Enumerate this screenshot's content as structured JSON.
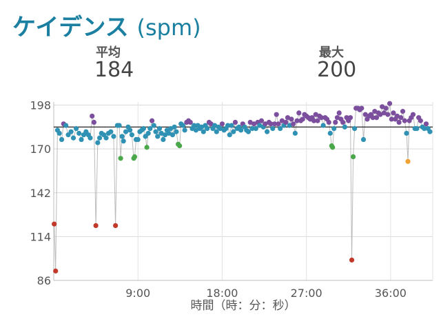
{
  "header": {
    "title": "ケイデンス",
    "unit": "(spm)"
  },
  "stats": {
    "avg_label": "平均",
    "avg_value": "184",
    "max_label": "最大",
    "max_value": "200"
  },
  "chart_data": {
    "type": "scatter",
    "title": "",
    "xlabel": "時間（時：分：秒）",
    "ylabel": "",
    "x_unit": "minutes",
    "xlim": [
      0,
      40.5
    ],
    "ylim": [
      86,
      198
    ],
    "y_ticks": [
      "198",
      "170",
      "142",
      "114",
      "86"
    ],
    "x_ticks": [
      "9:00",
      "18:00",
      "27:00",
      "36:00"
    ],
    "x_tick_values": [
      9,
      18,
      27,
      36
    ],
    "grid": true,
    "average_line": 184,
    "colors": {
      "purple": "#7b4f9d",
      "blue": "#2f91b3",
      "green": "#4aa84a",
      "orange": "#f0a030",
      "red": "#c0392b",
      "avg_line": "#222222",
      "connector": "#bbbbbb"
    },
    "points": [
      [
        0.05,
        122,
        "red"
      ],
      [
        0.2,
        92,
        "red"
      ],
      [
        0.4,
        182,
        "blue"
      ],
      [
        0.6,
        180,
        "blue"
      ],
      [
        0.85,
        176,
        "blue"
      ],
      [
        1.05,
        186,
        "purple"
      ],
      [
        1.3,
        185,
        "blue"
      ],
      [
        1.55,
        179,
        "blue"
      ],
      [
        1.85,
        181,
        "blue"
      ],
      [
        2.1,
        177,
        "blue"
      ],
      [
        2.4,
        183,
        "blue"
      ],
      [
        2.7,
        180,
        "blue"
      ],
      [
        2.95,
        176,
        "blue"
      ],
      [
        3.2,
        179,
        "blue"
      ],
      [
        3.45,
        181,
        "blue"
      ],
      [
        3.7,
        179,
        "blue"
      ],
      [
        3.9,
        177,
        "blue"
      ],
      [
        4.1,
        191,
        "purple"
      ],
      [
        4.3,
        187,
        "purple"
      ],
      [
        4.5,
        121,
        "red"
      ],
      [
        4.7,
        174,
        "blue"
      ],
      [
        4.9,
        177,
        "blue"
      ],
      [
        5.1,
        180,
        "blue"
      ],
      [
        5.35,
        179,
        "blue"
      ],
      [
        5.6,
        177,
        "blue"
      ],
      [
        5.85,
        180,
        "blue"
      ],
      [
        6.1,
        181,
        "blue"
      ],
      [
        6.4,
        178,
        "blue"
      ],
      [
        6.6,
        121,
        "red"
      ],
      [
        6.8,
        185,
        "blue"
      ],
      [
        7.0,
        185,
        "blue"
      ],
      [
        7.15,
        164,
        "green"
      ],
      [
        7.3,
        178,
        "blue"
      ],
      [
        7.45,
        175,
        "blue"
      ],
      [
        7.7,
        181,
        "blue"
      ],
      [
        7.95,
        184,
        "blue"
      ],
      [
        8.15,
        182,
        "blue"
      ],
      [
        8.35,
        179,
        "blue"
      ],
      [
        8.55,
        164,
        "green"
      ],
      [
        8.65,
        165,
        "green"
      ],
      [
        8.8,
        176,
        "blue"
      ],
      [
        9.0,
        176,
        "blue"
      ],
      [
        9.2,
        181,
        "blue"
      ],
      [
        9.4,
        182,
        "blue"
      ],
      [
        9.6,
        183,
        "blue"
      ],
      [
        9.8,
        178,
        "blue"
      ],
      [
        9.95,
        171,
        "green"
      ],
      [
        10.1,
        180,
        "blue"
      ],
      [
        10.3,
        183,
        "blue"
      ],
      [
        10.5,
        188,
        "purple"
      ],
      [
        10.7,
        185,
        "blue"
      ],
      [
        10.9,
        181,
        "blue"
      ],
      [
        11.1,
        178,
        "blue"
      ],
      [
        11.3,
        183,
        "blue"
      ],
      [
        11.5,
        180,
        "blue"
      ],
      [
        11.7,
        176,
        "blue"
      ],
      [
        11.9,
        179,
        "blue"
      ],
      [
        12.1,
        182,
        "blue"
      ],
      [
        12.3,
        180,
        "blue"
      ],
      [
        12.5,
        183,
        "blue"
      ],
      [
        12.7,
        179,
        "blue"
      ],
      [
        12.9,
        184,
        "blue"
      ],
      [
        13.1,
        181,
        "blue"
      ],
      [
        13.3,
        173,
        "green"
      ],
      [
        13.45,
        172,
        "green"
      ],
      [
        13.6,
        186,
        "blue"
      ],
      [
        13.8,
        185,
        "blue"
      ],
      [
        14.0,
        182,
        "blue"
      ],
      [
        14.2,
        187,
        "purple"
      ],
      [
        14.4,
        188,
        "purple"
      ],
      [
        14.6,
        187,
        "purple"
      ],
      [
        14.8,
        183,
        "blue"
      ],
      [
        15.0,
        185,
        "blue"
      ],
      [
        15.2,
        182,
        "blue"
      ],
      [
        15.4,
        185,
        "blue"
      ],
      [
        15.6,
        183,
        "blue"
      ],
      [
        15.8,
        184,
        "blue"
      ],
      [
        16.0,
        181,
        "blue"
      ],
      [
        16.2,
        185,
        "blue"
      ],
      [
        16.4,
        183,
        "blue"
      ],
      [
        16.6,
        187,
        "purple"
      ],
      [
        16.8,
        186,
        "purple"
      ],
      [
        17.0,
        183,
        "blue"
      ],
      [
        17.2,
        185,
        "blue"
      ],
      [
        17.4,
        181,
        "blue"
      ],
      [
        17.6,
        184,
        "blue"
      ],
      [
        17.8,
        183,
        "blue"
      ],
      [
        18.0,
        186,
        "purple"
      ],
      [
        18.2,
        182,
        "blue"
      ],
      [
        18.4,
        183,
        "blue"
      ],
      [
        18.6,
        185,
        "blue"
      ],
      [
        18.8,
        179,
        "blue"
      ],
      [
        19.0,
        185,
        "blue"
      ],
      [
        19.2,
        181,
        "blue"
      ],
      [
        19.4,
        187,
        "purple"
      ],
      [
        19.6,
        183,
        "blue"
      ],
      [
        19.8,
        184,
        "blue"
      ],
      [
        20.0,
        182,
        "blue"
      ],
      [
        20.2,
        186,
        "purple"
      ],
      [
        20.4,
        184,
        "blue"
      ],
      [
        20.6,
        182,
        "blue"
      ],
      [
        20.8,
        181,
        "blue"
      ],
      [
        21.0,
        187,
        "purple"
      ],
      [
        21.2,
        183,
        "blue"
      ],
      [
        21.4,
        186,
        "purple"
      ],
      [
        21.6,
        183,
        "blue"
      ],
      [
        21.8,
        187,
        "purple"
      ],
      [
        22.0,
        185,
        "blue"
      ],
      [
        22.2,
        188,
        "purple"
      ],
      [
        22.4,
        184,
        "blue"
      ],
      [
        22.6,
        186,
        "purple"
      ],
      [
        22.8,
        181,
        "blue"
      ],
      [
        23.0,
        187,
        "purple"
      ],
      [
        23.2,
        186,
        "purple"
      ],
      [
        23.4,
        183,
        "blue"
      ],
      [
        23.6,
        186,
        "purple"
      ],
      [
        23.8,
        192,
        "purple"
      ],
      [
        24.0,
        186,
        "purple"
      ],
      [
        24.2,
        183,
        "blue"
      ],
      [
        24.4,
        188,
        "purple"
      ],
      [
        24.6,
        185,
        "blue"
      ],
      [
        24.8,
        187,
        "purple"
      ],
      [
        25.0,
        190,
        "purple"
      ],
      [
        25.2,
        185,
        "blue"
      ],
      [
        25.4,
        189,
        "purple"
      ],
      [
        25.6,
        186,
        "purple"
      ],
      [
        25.8,
        180,
        "blue"
      ],
      [
        26.0,
        188,
        "purple"
      ],
      [
        26.2,
        193,
        "purple"
      ],
      [
        26.4,
        188,
        "purple"
      ],
      [
        26.6,
        189,
        "purple"
      ],
      [
        26.8,
        192,
        "purple"
      ],
      [
        27.0,
        191,
        "purple"
      ],
      [
        27.2,
        190,
        "purple"
      ],
      [
        27.4,
        189,
        "purple"
      ],
      [
        27.6,
        190,
        "purple"
      ],
      [
        27.8,
        188,
        "purple"
      ],
      [
        28.0,
        192,
        "purple"
      ],
      [
        28.2,
        188,
        "purple"
      ],
      [
        28.4,
        191,
        "purple"
      ],
      [
        28.6,
        190,
        "purple"
      ],
      [
        28.8,
        185,
        "blue"
      ],
      [
        29.0,
        190,
        "purple"
      ],
      [
        29.2,
        189,
        "purple"
      ],
      [
        29.4,
        187,
        "purple"
      ],
      [
        29.55,
        180,
        "blue"
      ],
      [
        29.7,
        172,
        "green"
      ],
      [
        29.8,
        171,
        "green"
      ],
      [
        29.95,
        183,
        "blue"
      ],
      [
        30.1,
        187,
        "purple"
      ],
      [
        30.3,
        190,
        "purple"
      ],
      [
        30.5,
        193,
        "purple"
      ],
      [
        30.7,
        189,
        "purple"
      ],
      [
        30.9,
        187,
        "purple"
      ],
      [
        31.1,
        184,
        "blue"
      ],
      [
        31.3,
        190,
        "purple"
      ],
      [
        31.5,
        188,
        "purple"
      ],
      [
        31.7,
        190,
        "purple"
      ],
      [
        31.85,
        99,
        "red"
      ],
      [
        32.0,
        165,
        "green"
      ],
      [
        32.15,
        183,
        "blue"
      ],
      [
        32.3,
        196,
        "purple"
      ],
      [
        32.5,
        196,
        "purple"
      ],
      [
        32.7,
        195,
        "purple"
      ],
      [
        32.9,
        196,
        "purple"
      ],
      [
        33.1,
        176,
        "blue"
      ],
      [
        33.3,
        192,
        "purple"
      ],
      [
        33.5,
        189,
        "purple"
      ],
      [
        33.7,
        191,
        "purple"
      ],
      [
        33.9,
        192,
        "purple"
      ],
      [
        34.1,
        190,
        "purple"
      ],
      [
        34.3,
        194,
        "purple"
      ],
      [
        34.5,
        190,
        "purple"
      ],
      [
        34.7,
        193,
        "purple"
      ],
      [
        34.9,
        192,
        "purple"
      ],
      [
        35.1,
        197,
        "purple"
      ],
      [
        35.3,
        193,
        "purple"
      ],
      [
        35.5,
        196,
        "purple"
      ],
      [
        35.7,
        192,
        "purple"
      ],
      [
        35.9,
        199,
        "purple"
      ],
      [
        36.1,
        189,
        "purple"
      ],
      [
        36.3,
        193,
        "purple"
      ],
      [
        36.5,
        189,
        "purple"
      ],
      [
        36.7,
        191,
        "purple"
      ],
      [
        36.9,
        187,
        "purple"
      ],
      [
        37.1,
        190,
        "purple"
      ],
      [
        37.3,
        194,
        "purple"
      ],
      [
        37.5,
        188,
        "purple"
      ],
      [
        37.7,
        180,
        "blue"
      ],
      [
        37.85,
        162,
        "orange"
      ],
      [
        38.0,
        188,
        "purple"
      ],
      [
        38.2,
        190,
        "purple"
      ],
      [
        38.4,
        192,
        "purple"
      ],
      [
        38.6,
        183,
        "blue"
      ],
      [
        38.8,
        183,
        "blue"
      ],
      [
        39.0,
        190,
        "purple"
      ],
      [
        39.2,
        188,
        "purple"
      ],
      [
        39.4,
        184,
        "blue"
      ],
      [
        39.6,
        183,
        "blue"
      ],
      [
        39.8,
        186,
        "purple"
      ],
      [
        40.0,
        183,
        "blue"
      ],
      [
        40.2,
        181,
        "blue"
      ]
    ]
  }
}
